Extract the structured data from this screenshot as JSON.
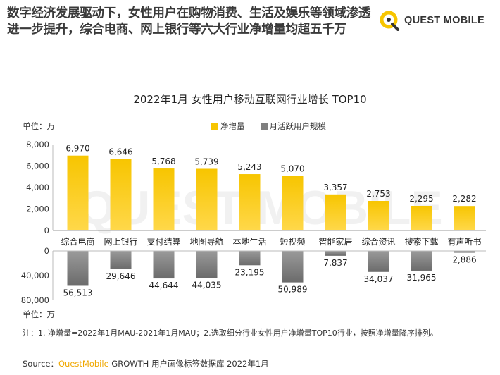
{
  "headline": "数字经济发展驱动下，女性用户在购物消费、生活及娱乐等领域渗透进一步提升，综合电商、网上银行等六大行业净增量均超五千万",
  "brand": {
    "name": "QUEST MOBILE",
    "icon": "questmobile-logo-icon"
  },
  "watermark": "QUEST MOBILE",
  "colors": {
    "accent": "#f7c500",
    "accent_light": "#ffd84a",
    "gray": "#7f7f7f",
    "gray_dark": "#6b6b6b"
  },
  "chart_data": {
    "type": "bar",
    "title": "2022年1月 女性用户移动互联网行业增长 TOP10",
    "categories": [
      "综合电商",
      "网上银行",
      "支付结算",
      "地图导航",
      "本地生活",
      "短视频",
      "智能家居",
      "综合资讯",
      "搜索下载",
      "有声听书"
    ],
    "series": [
      {
        "name": "净增量",
        "values": [
          6970,
          6646,
          5768,
          5739,
          5243,
          5070,
          3357,
          2753,
          2295,
          2282
        ],
        "labels": [
          "6,970",
          "6,646",
          "5,768",
          "5,739",
          "5,243",
          "5,070",
          "3,357",
          "2,753",
          "2,295",
          "2,282"
        ]
      },
      {
        "name": "月活跃用户规模",
        "values": [
          56513,
          29646,
          44644,
          44035,
          23195,
          50989,
          7837,
          34037,
          31965,
          2886
        ],
        "labels": [
          "56,513",
          "29,646",
          "44,644",
          "44,035",
          "23,195",
          "50,989",
          "7,837",
          "34,037",
          "31,965",
          "2,886"
        ]
      }
    ],
    "top_axis": {
      "unit": "单位：万",
      "ylim": [
        0,
        8000
      ],
      "ticks": [
        "8,000",
        "6,000",
        "4,000",
        "2,000",
        "0"
      ]
    },
    "bottom_axis": {
      "unit": "单位：万",
      "ylim": [
        0,
        80000
      ],
      "ticks": [
        "0",
        "40,000",
        "80,000"
      ],
      "inverted": true
    },
    "legend_position": "top-center",
    "grid": false
  },
  "note": "注：1. 净增量=2022年1月MAU-2021年1月MAU；2.选取细分行业女性用户净增量TOP10行业，按照净增量降序排列。",
  "source": {
    "prefix": "Source：",
    "brand": "QuestMobile",
    "suffix": " GROWTH 用户画像标签数据库 2022年1月"
  }
}
